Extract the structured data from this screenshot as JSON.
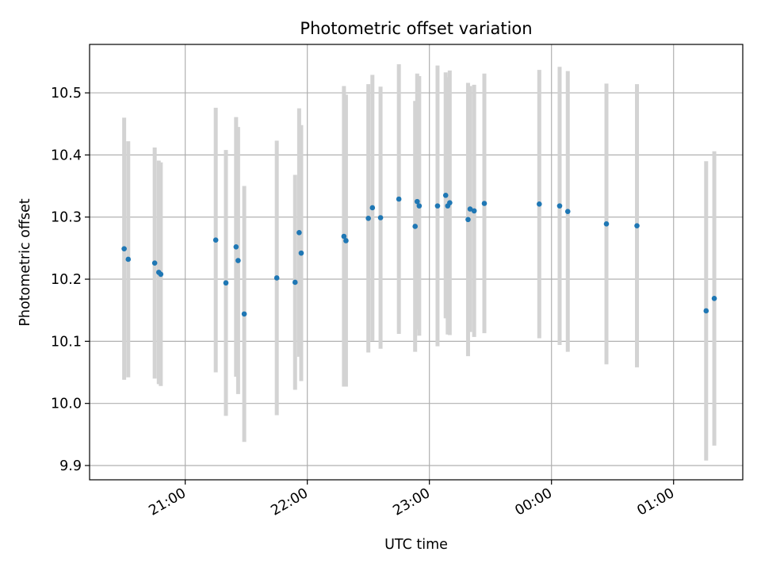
{
  "chart_data": {
    "type": "scatter",
    "title": "Photometric offset variation",
    "xlabel": "UTC time",
    "ylabel": "Photometric offset",
    "grid": true,
    "xlim": [
      "20:13",
      "01:34"
    ],
    "ylim": [
      9.877,
      10.578
    ],
    "x_ticks": [
      "21:00",
      "22:00",
      "23:00",
      "00:00",
      "01:00"
    ],
    "y_ticks": [
      "9.9",
      "10.0",
      "10.1",
      "10.2",
      "10.3",
      "10.4",
      "10.5"
    ],
    "colors": {
      "point": "#1f77b4",
      "error_bar": "#d3d3d3",
      "grid": "#b0b0b0"
    },
    "points": [
      {
        "x": "20:30",
        "y": 10.249,
        "err": 0.211
      },
      {
        "x": "20:32",
        "y": 10.232,
        "err": 0.19
      },
      {
        "x": "20:45",
        "y": 10.226,
        "err": 0.186
      },
      {
        "x": "20:47",
        "y": 10.211,
        "err": 0.18
      },
      {
        "x": "20:48",
        "y": 10.208,
        "err": 0.18
      },
      {
        "x": "21:15",
        "y": 10.263,
        "err": 0.213
      },
      {
        "x": "21:20",
        "y": 10.194,
        "err": 0.214
      },
      {
        "x": "21:25",
        "y": 10.252,
        "err": 0.209
      },
      {
        "x": "21:26",
        "y": 10.23,
        "err": 0.215
      },
      {
        "x": "21:29",
        "y": 10.144,
        "err": 0.206
      },
      {
        "x": "21:45",
        "y": 10.202,
        "err": 0.221
      },
      {
        "x": "21:54",
        "y": 10.195,
        "err": 0.173
      },
      {
        "x": "21:56",
        "y": 10.275,
        "err": 0.2
      },
      {
        "x": "21:57",
        "y": 10.242,
        "err": 0.206
      },
      {
        "x": "22:18",
        "y": 10.269,
        "err": 0.242
      },
      {
        "x": "22:19",
        "y": 10.262,
        "err": 0.235
      },
      {
        "x": "22:30",
        "y": 10.298,
        "err": 0.216
      },
      {
        "x": "22:32",
        "y": 10.315,
        "err": 0.214
      },
      {
        "x": "22:36",
        "y": 10.299,
        "err": 0.211
      },
      {
        "x": "22:45",
        "y": 10.329,
        "err": 0.217
      },
      {
        "x": "22:53",
        "y": 10.285,
        "err": 0.202
      },
      {
        "x": "22:54",
        "y": 10.325,
        "err": 0.206
      },
      {
        "x": "22:55",
        "y": 10.318,
        "err": 0.209
      },
      {
        "x": "23:04",
        "y": 10.318,
        "err": 0.226
      },
      {
        "x": "23:08",
        "y": 10.335,
        "err": 0.198
      },
      {
        "x": "23:09",
        "y": 10.318,
        "err": 0.207
      },
      {
        "x": "23:10",
        "y": 10.323,
        "err": 0.213
      },
      {
        "x": "23:19",
        "y": 10.296,
        "err": 0.22
      },
      {
        "x": "23:20",
        "y": 10.313,
        "err": 0.198
      },
      {
        "x": "23:22",
        "y": 10.31,
        "err": 0.203
      },
      {
        "x": "23:27",
        "y": 10.322,
        "err": 0.209
      },
      {
        "x": "23:54",
        "y": 10.321,
        "err": 0.216
      },
      {
        "x": "00:04",
        "y": 10.318,
        "err": 0.224
      },
      {
        "x": "00:08",
        "y": 10.309,
        "err": 0.226
      },
      {
        "x": "00:27",
        "y": 10.289,
        "err": 0.226
      },
      {
        "x": "00:42",
        "y": 10.286,
        "err": 0.228
      },
      {
        "x": "01:16",
        "y": 10.149,
        "err": 0.241
      },
      {
        "x": "01:20",
        "y": 10.169,
        "err": 0.237
      }
    ]
  }
}
